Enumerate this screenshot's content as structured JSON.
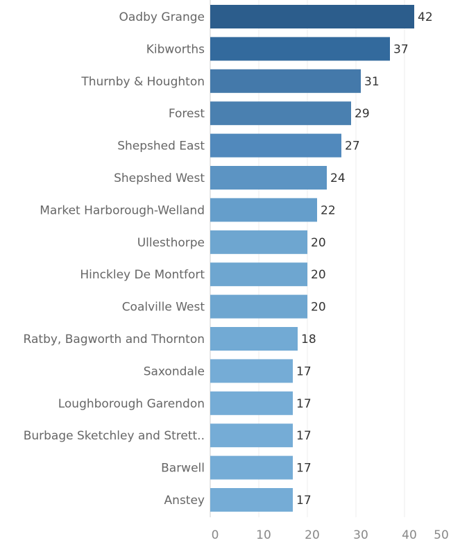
{
  "chart_data": {
    "type": "barh",
    "categories": [
      "Oadby Grange",
      "Kibworths",
      "Thurnby & Houghton",
      "Forest",
      "Shepshed East",
      "Shepshed West",
      "Market Harborough-Welland",
      "Ullesthorpe",
      "Hinckley De Montfort",
      "Coalville West",
      "Ratby, Bagworth and Thornton",
      "Saxondale",
      "Loughborough Garendon",
      "Burbage Sketchley and Strett..",
      "Barwell",
      "Anstey"
    ],
    "values": [
      42,
      37,
      31,
      29,
      27,
      24,
      22,
      20,
      20,
      20,
      18,
      17,
      17,
      17,
      17,
      17
    ],
    "colors": [
      "#2c5d8c",
      "#336a9d",
      "#4479aa",
      "#4a80b0",
      "#5189bc",
      "#5c94c3",
      "#659ecb",
      "#6ea6d0",
      "#6ea6d0",
      "#6ea6d0",
      "#72aad4",
      "#75acd6",
      "#75acd6",
      "#75acd6",
      "#75acd6",
      "#75acd6"
    ],
    "xlim": [
      0,
      50
    ],
    "xticks": [
      0,
      10,
      20,
      30,
      40,
      50
    ],
    "grid": true
  }
}
